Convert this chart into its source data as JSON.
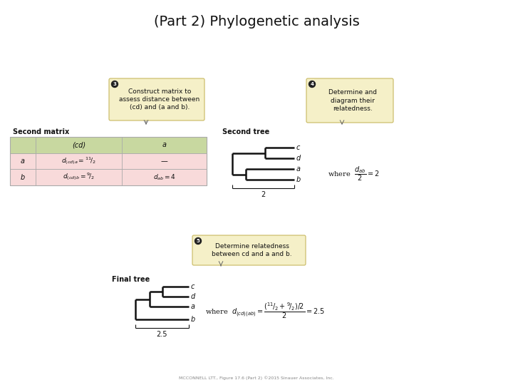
{
  "title": "(Part 2) Phylogenetic analysis",
  "title_fontsize": 14,
  "bg_color": "#ffffff",
  "second_matrix_label": "Second matrix",
  "second_tree_label": "Second tree",
  "final_tree_label": "Final tree",
  "footnote": "MCCONNELL LTT., Figure 17.6 (Part 2) ©2015 Sinauer Associates, Inc.",
  "callout_bg": "#f5f0c8",
  "callout_border": "#c8b860",
  "table_header_bg": "#c8d8a0",
  "table_row_bg": "#f8dada",
  "table_border": "#aaaaaa",
  "tree_color": "#111111",
  "tree_lw": 1.8
}
